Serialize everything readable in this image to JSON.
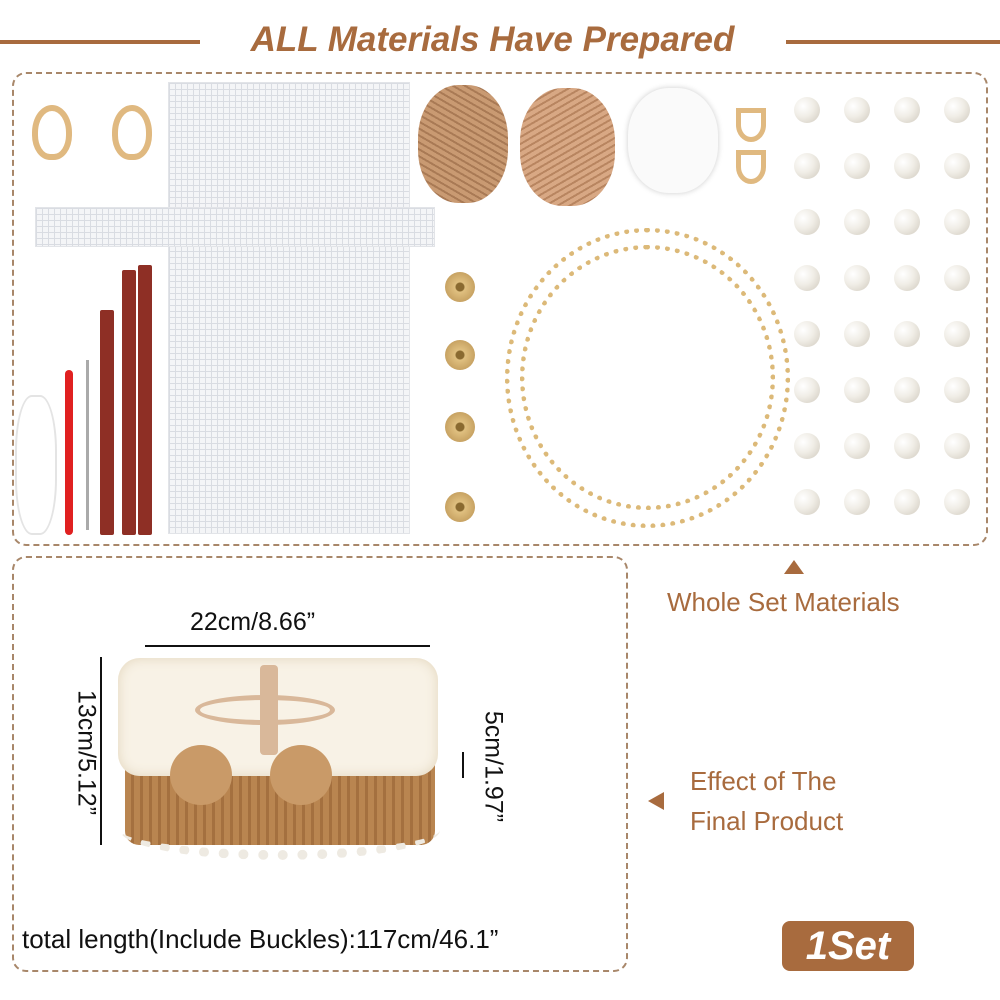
{
  "header": {
    "title": "ALL Materials Have Prepared"
  },
  "materials": {
    "label": "Whole Set Materials",
    "pearl_count": 32,
    "pearl_rows": 8,
    "pearl_cols": 4
  },
  "product": {
    "label_line1": "Effect of The",
    "label_line2": "Final Product",
    "width_dim": "22cm/8.66”",
    "height_dim": "13cm/5.12”",
    "depth_dim": "5cm/1.97”",
    "total_length": "total length(Include Buckles):117cm/46.1”"
  },
  "badge": {
    "text": "1Set"
  },
  "colors": {
    "accent": "#a86b3e",
    "border": "#a8876a"
  }
}
